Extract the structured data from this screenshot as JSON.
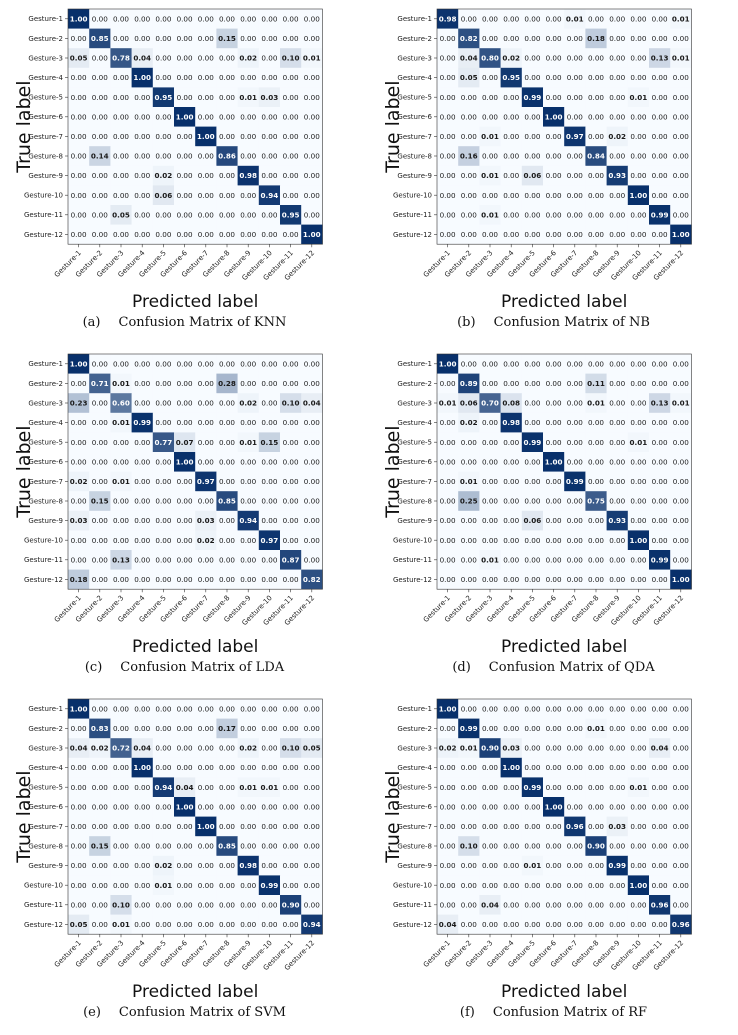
{
  "figure": {
    "class_labels": [
      "Gesture-1",
      "Gesture-2",
      "Gesture-3",
      "Gesture-4",
      "Gesture-5",
      "Gesture-6",
      "Gesture-7",
      "Gesture-8",
      "Gesture-9",
      "Gesture-10",
      "Gesture-11",
      "Gesture-12"
    ],
    "ylabel": "True label",
    "xlabel": "Predicted label",
    "colormap": {
      "low": "#f7fbff",
      "high": "#08306b"
    }
  },
  "chart_data": [
    {
      "type": "heatmap",
      "id": "knn",
      "caption_label": "(a)",
      "caption_title": "Confusion Matrix of KNN",
      "values": [
        [
          "1.00",
          "0.00",
          "0.00",
          "0.00",
          "0.00",
          "0.00",
          "0.00",
          "0.00",
          "0.00",
          "0.00",
          "0.00",
          "0.00"
        ],
        [
          "0.00",
          "0.85",
          "0.00",
          "0.00",
          "0.00",
          "0.00",
          "0.00",
          "0.15",
          "0.00",
          "0.00",
          "0.00",
          "0.00"
        ],
        [
          "0.05",
          "0.00",
          "0.78",
          "0.04",
          "0.00",
          "0.00",
          "0.00",
          "0.00",
          "0.02",
          "0.00",
          "0.10",
          "0.01"
        ],
        [
          "0.00",
          "0.00",
          "0.00",
          "1.00",
          "0.00",
          "0.00",
          "0.00",
          "0.00",
          "0.00",
          "0.00",
          "0.00",
          "0.00"
        ],
        [
          "0.00",
          "0.00",
          "0.00",
          "0.00",
          "0.95",
          "0.00",
          "0.00",
          "0.00",
          "0.01",
          "0.03",
          "0.00",
          "0.00"
        ],
        [
          "0.00",
          "0.00",
          "0.00",
          "0.00",
          "0.00",
          "1.00",
          "0.00",
          "0.00",
          "0.00",
          "0.00",
          "0.00",
          "0.00"
        ],
        [
          "0.00",
          "0.00",
          "0.00",
          "0.00",
          "0.00",
          "0.00",
          "1.00",
          "0.00",
          "0.00",
          "0.00",
          "0.00",
          "0.00"
        ],
        [
          "0.00",
          "0.14",
          "0.00",
          "0.00",
          "0.00",
          "0.00",
          "0.00",
          "0.86",
          "0.00",
          "0.00",
          "0.00",
          "0.00"
        ],
        [
          "0.00",
          "0.00",
          "0.00",
          "0.00",
          "0.02",
          "0.00",
          "0.00",
          "0.00",
          "0.98",
          "0.00",
          "0.00",
          "0.00"
        ],
        [
          "0.00",
          "0.00",
          "0.00",
          "0.00",
          "0.06",
          "0.00",
          "0.00",
          "0.00",
          "0.00",
          "0.94",
          "0.00",
          "0.00"
        ],
        [
          "0.00",
          "0.00",
          "0.05",
          "0.00",
          "0.00",
          "0.00",
          "0.00",
          "0.00",
          "0.00",
          "0.00",
          "0.95",
          "0.00"
        ],
        [
          "0.00",
          "0.00",
          "0.00",
          "0.00",
          "0.00",
          "0.00",
          "0.00",
          "0.00",
          "0.00",
          "0.00",
          "0.00",
          "1.00"
        ]
      ]
    },
    {
      "type": "heatmap",
      "id": "nb",
      "caption_label": "(b)",
      "caption_title": "Confusion Matrix of NB",
      "values": [
        [
          "0.98",
          "0.00",
          "0.00",
          "0.00",
          "0.00",
          "0.00",
          "0.01",
          "0.00",
          "0.00",
          "0.00",
          "0.00",
          "0.01"
        ],
        [
          "0.00",
          "0.82",
          "0.00",
          "0.00",
          "0.00",
          "0.00",
          "0.00",
          "0.18",
          "0.00",
          "0.00",
          "0.00",
          "0.00"
        ],
        [
          "0.00",
          "0.04",
          "0.80",
          "0.02",
          "0.00",
          "0.00",
          "0.00",
          "0.00",
          "0.00",
          "0.00",
          "0.13",
          "0.01"
        ],
        [
          "0.00",
          "0.05",
          "0.00",
          "0.95",
          "0.00",
          "0.00",
          "0.00",
          "0.00",
          "0.00",
          "0.00",
          "0.00",
          "0.00"
        ],
        [
          "0.00",
          "0.00",
          "0.00",
          "0.00",
          "0.99",
          "0.00",
          "0.00",
          "0.00",
          "0.00",
          "0.01",
          "0.00",
          "0.00"
        ],
        [
          "0.00",
          "0.00",
          "0.00",
          "0.00",
          "0.00",
          "1.00",
          "0.00",
          "0.00",
          "0.00",
          "0.00",
          "0.00",
          "0.00"
        ],
        [
          "0.00",
          "0.00",
          "0.01",
          "0.00",
          "0.00",
          "0.00",
          "0.97",
          "0.00",
          "0.02",
          "0.00",
          "0.00",
          "0.00"
        ],
        [
          "0.00",
          "0.16",
          "0.00",
          "0.00",
          "0.00",
          "0.00",
          "0.00",
          "0.84",
          "0.00",
          "0.00",
          "0.00",
          "0.00"
        ],
        [
          "0.00",
          "0.00",
          "0.01",
          "0.00",
          "0.06",
          "0.00",
          "0.00",
          "0.00",
          "0.93",
          "0.00",
          "0.00",
          "0.00"
        ],
        [
          "0.00",
          "0.00",
          "0.00",
          "0.00",
          "0.00",
          "0.00",
          "0.00",
          "0.00",
          "0.00",
          "1.00",
          "0.00",
          "0.00"
        ],
        [
          "0.00",
          "0.00",
          "0.01",
          "0.00",
          "0.00",
          "0.00",
          "0.00",
          "0.00",
          "0.00",
          "0.00",
          "0.99",
          "0.00"
        ],
        [
          "0.00",
          "0.00",
          "0.00",
          "0.00",
          "0.00",
          "0.00",
          "0.00",
          "0.00",
          "0.00",
          "0.00",
          "0.00",
          "1.00"
        ]
      ]
    },
    {
      "type": "heatmap",
      "id": "lda",
      "caption_label": "(c)",
      "caption_title": "Confusion Matrix of LDA",
      "values": [
        [
          "1.00",
          "0.00",
          "0.00",
          "0.00",
          "0.00",
          "0.00",
          "0.00",
          "0.00",
          "0.00",
          "0.00",
          "0.00",
          "0.00"
        ],
        [
          "0.00",
          "0.71",
          "0.01",
          "0.00",
          "0.00",
          "0.00",
          "0.00",
          "0.28",
          "0.00",
          "0.00",
          "0.00",
          "0.00"
        ],
        [
          "0.23",
          "0.00",
          "0.60",
          "0.00",
          "0.00",
          "0.00",
          "0.00",
          "0.00",
          "0.02",
          "0.00",
          "0.10",
          "0.04"
        ],
        [
          "0.00",
          "0.00",
          "0.01",
          "0.99",
          "0.00",
          "0.00",
          "0.00",
          "0.00",
          "0.00",
          "0.00",
          "0.00",
          "0.00"
        ],
        [
          "0.00",
          "0.00",
          "0.00",
          "0.00",
          "0.77",
          "0.07",
          "0.00",
          "0.00",
          "0.01",
          "0.15",
          "0.00",
          "0.00"
        ],
        [
          "0.00",
          "0.00",
          "0.00",
          "0.00",
          "0.00",
          "1.00",
          "0.00",
          "0.00",
          "0.00",
          "0.00",
          "0.00",
          "0.00"
        ],
        [
          "0.02",
          "0.00",
          "0.01",
          "0.00",
          "0.00",
          "0.00",
          "0.97",
          "0.00",
          "0.00",
          "0.00",
          "0.00",
          "0.00"
        ],
        [
          "0.00",
          "0.15",
          "0.00",
          "0.00",
          "0.00",
          "0.00",
          "0.00",
          "0.85",
          "0.00",
          "0.00",
          "0.00",
          "0.00"
        ],
        [
          "0.03",
          "0.00",
          "0.00",
          "0.00",
          "0.00",
          "0.00",
          "0.03",
          "0.00",
          "0.94",
          "0.00",
          "0.00",
          "0.00"
        ],
        [
          "0.00",
          "0.00",
          "0.00",
          "0.00",
          "0.00",
          "0.00",
          "0.02",
          "0.00",
          "0.00",
          "0.97",
          "0.00",
          "0.00"
        ],
        [
          "0.00",
          "0.00",
          "0.13",
          "0.00",
          "0.00",
          "0.00",
          "0.00",
          "0.00",
          "0.00",
          "0.00",
          "0.87",
          "0.00"
        ],
        [
          "0.18",
          "0.00",
          "0.00",
          "0.00",
          "0.00",
          "0.00",
          "0.00",
          "0.00",
          "0.00",
          "0.00",
          "0.00",
          "0.82"
        ]
      ]
    },
    {
      "type": "heatmap",
      "id": "qda",
      "caption_label": "(d)",
      "caption_title": "Confusion Matrix of QDA",
      "values": [
        [
          "1.00",
          "0.00",
          "0.00",
          "0.00",
          "0.00",
          "0.00",
          "0.00",
          "0.00",
          "0.00",
          "0.00",
          "0.00",
          "0.00"
        ],
        [
          "0.00",
          "0.89",
          "0.00",
          "0.00",
          "0.00",
          "0.00",
          "0.00",
          "0.11",
          "0.00",
          "0.00",
          "0.00",
          "0.00"
        ],
        [
          "0.01",
          "0.06",
          "0.70",
          "0.08",
          "0.00",
          "0.00",
          "0.00",
          "0.01",
          "0.00",
          "0.00",
          "0.13",
          "0.01"
        ],
        [
          "0.00",
          "0.02",
          "0.00",
          "0.98",
          "0.00",
          "0.00",
          "0.00",
          "0.00",
          "0.00",
          "0.00",
          "0.00",
          "0.00"
        ],
        [
          "0.00",
          "0.00",
          "0.00",
          "0.00",
          "0.99",
          "0.00",
          "0.00",
          "0.00",
          "0.00",
          "0.01",
          "0.00",
          "0.00"
        ],
        [
          "0.00",
          "0.00",
          "0.00",
          "0.00",
          "0.00",
          "1.00",
          "0.00",
          "0.00",
          "0.00",
          "0.00",
          "0.00",
          "0.00"
        ],
        [
          "0.00",
          "0.01",
          "0.00",
          "0.00",
          "0.00",
          "0.00",
          "0.99",
          "0.00",
          "0.00",
          "0.00",
          "0.00",
          "0.00"
        ],
        [
          "0.00",
          "0.25",
          "0.00",
          "0.00",
          "0.00",
          "0.00",
          "0.00",
          "0.75",
          "0.00",
          "0.00",
          "0.00",
          "0.00"
        ],
        [
          "0.00",
          "0.00",
          "0.00",
          "0.00",
          "0.06",
          "0.00",
          "0.00",
          "0.00",
          "0.93",
          "0.00",
          "0.00",
          "0.00"
        ],
        [
          "0.00",
          "0.00",
          "0.00",
          "0.00",
          "0.00",
          "0.00",
          "0.00",
          "0.00",
          "0.00",
          "1.00",
          "0.00",
          "0.00"
        ],
        [
          "0.00",
          "0.00",
          "0.01",
          "0.00",
          "0.00",
          "0.00",
          "0.00",
          "0.00",
          "0.00",
          "0.00",
          "0.99",
          "0.00"
        ],
        [
          "0.00",
          "0.00",
          "0.00",
          "0.00",
          "0.00",
          "0.00",
          "0.00",
          "0.00",
          "0.00",
          "0.00",
          "0.00",
          "1.00"
        ]
      ]
    },
    {
      "type": "heatmap",
      "id": "svm",
      "caption_label": "(e)",
      "caption_title": "Confusion Matrix of SVM",
      "values": [
        [
          "1.00",
          "0.00",
          "0.00",
          "0.00",
          "0.00",
          "0.00",
          "0.00",
          "0.00",
          "0.00",
          "0.00",
          "0.00",
          "0.00"
        ],
        [
          "0.00",
          "0.83",
          "0.00",
          "0.00",
          "0.00",
          "0.00",
          "0.00",
          "0.17",
          "0.00",
          "0.00",
          "0.00",
          "0.00"
        ],
        [
          "0.04",
          "0.02",
          "0.72",
          "0.04",
          "0.00",
          "0.00",
          "0.00",
          "0.00",
          "0.02",
          "0.00",
          "0.10",
          "0.05"
        ],
        [
          "0.00",
          "0.00",
          "0.00",
          "1.00",
          "0.00",
          "0.00",
          "0.00",
          "0.00",
          "0.00",
          "0.00",
          "0.00",
          "0.00"
        ],
        [
          "0.00",
          "0.00",
          "0.00",
          "0.00",
          "0.94",
          "0.04",
          "0.00",
          "0.00",
          "0.01",
          "0.01",
          "0.00",
          "0.00"
        ],
        [
          "0.00",
          "0.00",
          "0.00",
          "0.00",
          "0.00",
          "1.00",
          "0.00",
          "0.00",
          "0.00",
          "0.00",
          "0.00",
          "0.00"
        ],
        [
          "0.00",
          "0.00",
          "0.00",
          "0.00",
          "0.00",
          "0.00",
          "1.00",
          "0.00",
          "0.00",
          "0.00",
          "0.00",
          "0.00"
        ],
        [
          "0.00",
          "0.15",
          "0.00",
          "0.00",
          "0.00",
          "0.00",
          "0.00",
          "0.85",
          "0.00",
          "0.00",
          "0.00",
          "0.00"
        ],
        [
          "0.00",
          "0.00",
          "0.00",
          "0.00",
          "0.02",
          "0.00",
          "0.00",
          "0.00",
          "0.98",
          "0.00",
          "0.00",
          "0.00"
        ],
        [
          "0.00",
          "0.00",
          "0.00",
          "0.00",
          "0.01",
          "0.00",
          "0.00",
          "0.00",
          "0.00",
          "0.99",
          "0.00",
          "0.00"
        ],
        [
          "0.00",
          "0.00",
          "0.10",
          "0.00",
          "0.00",
          "0.00",
          "0.00",
          "0.00",
          "0.00",
          "0.00",
          "0.90",
          "0.00"
        ],
        [
          "0.05",
          "0.00",
          "0.01",
          "0.00",
          "0.00",
          "0.00",
          "0.00",
          "0.00",
          "0.00",
          "0.00",
          "0.00",
          "0.94"
        ]
      ]
    },
    {
      "type": "heatmap",
      "id": "rf",
      "caption_label": "(f)",
      "caption_title": "Confusion Matrix of RF",
      "values": [
        [
          "1.00",
          "0.00",
          "0.00",
          "0.00",
          "0.00",
          "0.00",
          "0.00",
          "0.00",
          "0.00",
          "0.00",
          "0.00",
          "0.00"
        ],
        [
          "0.00",
          "0.99",
          "0.00",
          "0.00",
          "0.00",
          "0.00",
          "0.00",
          "0.01",
          "0.00",
          "0.00",
          "0.00",
          "0.00"
        ],
        [
          "0.02",
          "0.01",
          "0.90",
          "0.03",
          "0.00",
          "0.00",
          "0.00",
          "0.00",
          "0.00",
          "0.00",
          "0.04",
          "0.00"
        ],
        [
          "0.00",
          "0.00",
          "0.00",
          "1.00",
          "0.00",
          "0.00",
          "0.00",
          "0.00",
          "0.00",
          "0.00",
          "0.00",
          "0.00"
        ],
        [
          "0.00",
          "0.00",
          "0.00",
          "0.00",
          "0.99",
          "0.00",
          "0.00",
          "0.00",
          "0.00",
          "0.01",
          "0.00",
          "0.00"
        ],
        [
          "0.00",
          "0.00",
          "0.00",
          "0.00",
          "0.00",
          "1.00",
          "0.00",
          "0.00",
          "0.00",
          "0.00",
          "0.00",
          "0.00"
        ],
        [
          "0.00",
          "0.00",
          "0.00",
          "0.00",
          "0.00",
          "0.00",
          "0.96",
          "0.00",
          "0.03",
          "0.00",
          "0.00",
          "0.00"
        ],
        [
          "0.00",
          "0.10",
          "0.00",
          "0.00",
          "0.00",
          "0.00",
          "0.00",
          "0.90",
          "0.00",
          "0.00",
          "0.00",
          "0.00"
        ],
        [
          "0.00",
          "0.00",
          "0.00",
          "0.00",
          "0.01",
          "0.00",
          "0.00",
          "0.00",
          "0.99",
          "0.00",
          "0.00",
          "0.00"
        ],
        [
          "0.00",
          "0.00",
          "0.00",
          "0.00",
          "0.00",
          "0.00",
          "0.00",
          "0.00",
          "0.00",
          "1.00",
          "0.00",
          "0.00"
        ],
        [
          "0.00",
          "0.00",
          "0.04",
          "0.00",
          "0.00",
          "0.00",
          "0.00",
          "0.00",
          "0.00",
          "0.00",
          "0.96",
          "0.00"
        ],
        [
          "0.04",
          "0.00",
          "0.00",
          "0.00",
          "0.00",
          "0.00",
          "0.00",
          "0.00",
          "0.00",
          "0.00",
          "0.00",
          "0.96"
        ]
      ]
    }
  ]
}
